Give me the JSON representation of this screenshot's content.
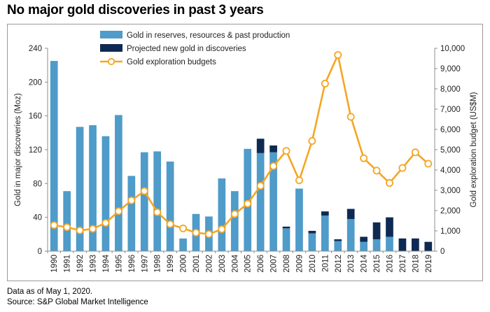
{
  "title": "No major gold discoveries in past 3 years",
  "notes": {
    "data_as_of": "Data as of May 1, 2020.",
    "source": "Source: S&P Global Market Intelligence"
  },
  "chart_data": {
    "type": "bar",
    "categories": [
      "1990",
      "1991",
      "1992",
      "1993",
      "1994",
      "1995",
      "1996",
      "1997",
      "1998",
      "1999",
      "2000",
      "2001",
      "2002",
      "2003",
      "2004",
      "2005",
      "2006",
      "2007",
      "2008",
      "2009",
      "2010",
      "2011",
      "2012",
      "2013",
      "2014",
      "2015",
      "2016",
      "2017",
      "2018",
      "2019"
    ],
    "series": [
      {
        "name": "Gold in reserves, resources & past production",
        "kind": "bar",
        "axis": "left",
        "color": "#4f9bc9",
        "values": [
          225,
          71,
          147,
          149,
          136,
          161,
          89,
          117,
          118,
          106,
          15,
          44,
          41,
          86,
          71,
          121,
          116,
          117,
          27,
          74,
          21,
          42,
          12,
          38,
          11,
          14,
          17,
          0,
          0,
          0
        ]
      },
      {
        "name": "Projected new gold in discoveries",
        "kind": "bar",
        "axis": "left",
        "color": "#0f2a52",
        "values": [
          0,
          0,
          0,
          0,
          0,
          0,
          0,
          0,
          0,
          0,
          0,
          0,
          0,
          0,
          0,
          0,
          17,
          8,
          2,
          0,
          3,
          5,
          2,
          12,
          6,
          20,
          23,
          15,
          15,
          11
        ]
      },
      {
        "name": "Gold exploration budgets",
        "kind": "line",
        "axis": "right",
        "color": "#f5a623",
        "values": [
          1280,
          1180,
          1020,
          1100,
          1390,
          1970,
          2500,
          2960,
          1920,
          1330,
          1120,
          910,
          840,
          1080,
          1830,
          2340,
          3220,
          4190,
          4940,
          3490,
          5430,
          8260,
          9670,
          6620,
          4580,
          3970,
          3360,
          4100,
          4870,
          4310
        ]
      }
    ],
    "y_left": {
      "label": "Gold in major discoveries (Moz)",
      "ylim": [
        0,
        240
      ],
      "ticks": [
        "0",
        "40",
        "80",
        "120",
        "160",
        "200",
        "240"
      ]
    },
    "y_right": {
      "label": "Gold exploration budget (US$M)",
      "ylim": [
        0,
        10000
      ],
      "ticks": [
        "0",
        "1,000",
        "2,000",
        "3,000",
        "4,000",
        "5,000",
        "6,000",
        "7,000",
        "8,000",
        "9,000",
        "10,000"
      ]
    },
    "grid": false,
    "legend_placement": "top-center"
  }
}
